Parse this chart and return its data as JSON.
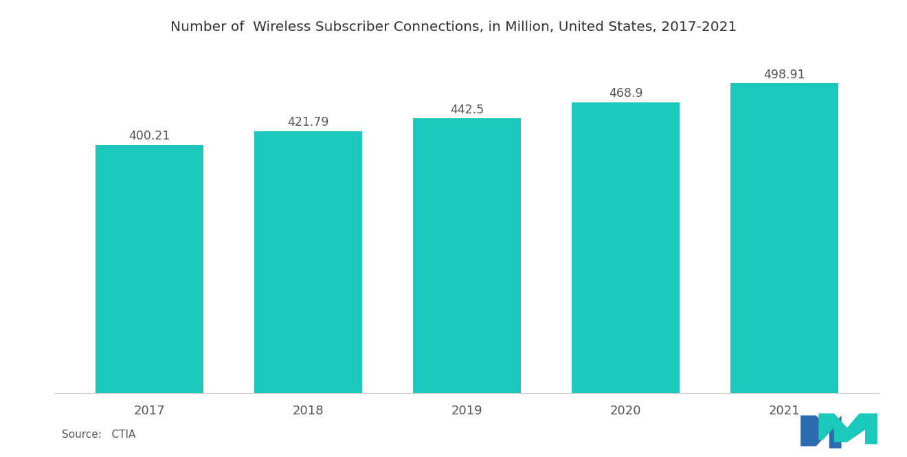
{
  "title": "Number of  Wireless Subscriber Connections, in Million, United States, 2017-2021",
  "categories": [
    "2017",
    "2018",
    "2019",
    "2020",
    "2021"
  ],
  "values": [
    400.21,
    421.79,
    442.5,
    468.9,
    498.91
  ],
  "bar_color": "#1CC8BB",
  "background_color": "#FFFFFF",
  "title_fontsize": 14.5,
  "tick_fontsize": 13,
  "source_text": "Source:   CTIA",
  "ylim": [
    0,
    545
  ],
  "value_label_fontsize": 12.5,
  "value_label_color": "#555555",
  "bar_width": 0.68,
  "logo_blue": "#2B6CB0",
  "logo_teal": "#1CC8BB"
}
